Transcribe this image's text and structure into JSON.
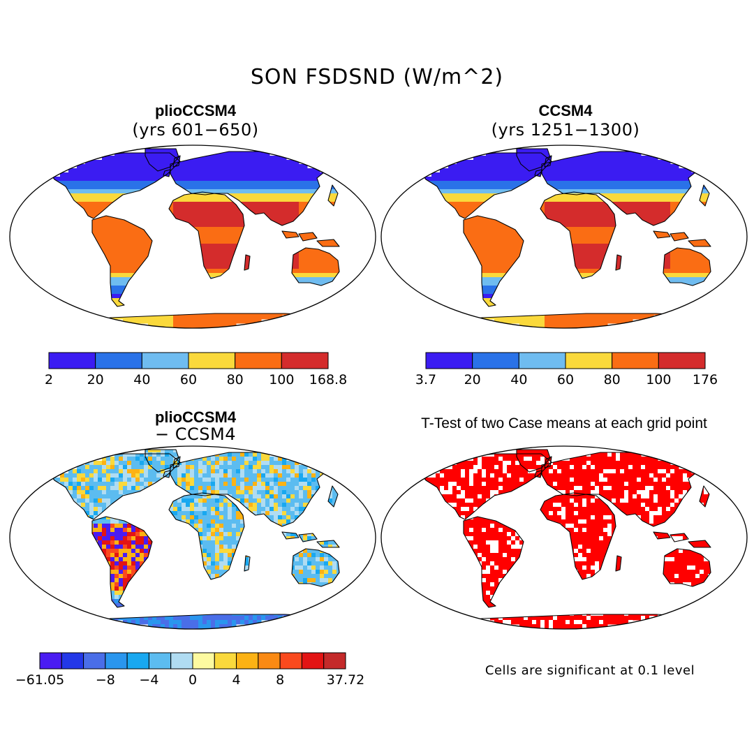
{
  "figure": {
    "title": "SON FSDSND (W/m^2)"
  },
  "panels": [
    {
      "id": "plio",
      "title": "plioCCSM4",
      "subtitle": "(yrs 601−650)",
      "colorbar": {
        "colors": [
          "#3b1cf2",
          "#2a72e8",
          "#6fbcf0",
          "#fad93c",
          "#fa6d14",
          "#d42c2c"
        ],
        "labels": [
          "2",
          "20",
          "40",
          "60",
          "80",
          "100",
          "168.8"
        ]
      }
    },
    {
      "id": "ccsm4",
      "title": "CCSM4",
      "subtitle": "(yrs 1251−1300)",
      "colorbar": {
        "colors": [
          "#3b1cf2",
          "#2a72e8",
          "#6fbcf0",
          "#fad93c",
          "#fa6d14",
          "#d42c2c"
        ],
        "labels": [
          "3.7",
          "20",
          "40",
          "60",
          "80",
          "100",
          "176"
        ]
      }
    },
    {
      "id": "diff",
      "title": "plioCCSM4",
      "subtitle": "− CCSM4",
      "colorbar": {
        "colors": [
          "#4a1cf2",
          "#2338e8",
          "#4a6ee8",
          "#2a96ee",
          "#19a8f0",
          "#5cbcf0",
          "#b0dcf2",
          "#fdfaa0",
          "#fad93c",
          "#fcb214",
          "#fa8a14",
          "#fa4a1e",
          "#e31414",
          "#c42a2a"
        ],
        "labels": [
          "−61.05",
          "−8",
          "−4",
          "0",
          "4",
          "8",
          "37.72"
        ],
        "label_positions": [
          0,
          3,
          5,
          7,
          9,
          11,
          14
        ]
      }
    },
    {
      "id": "ttest",
      "title": "T-Test of two Case means at each grid point",
      "note": "Cells are significant at 0.1 level",
      "fill_color": "#ff0000"
    }
  ]
}
